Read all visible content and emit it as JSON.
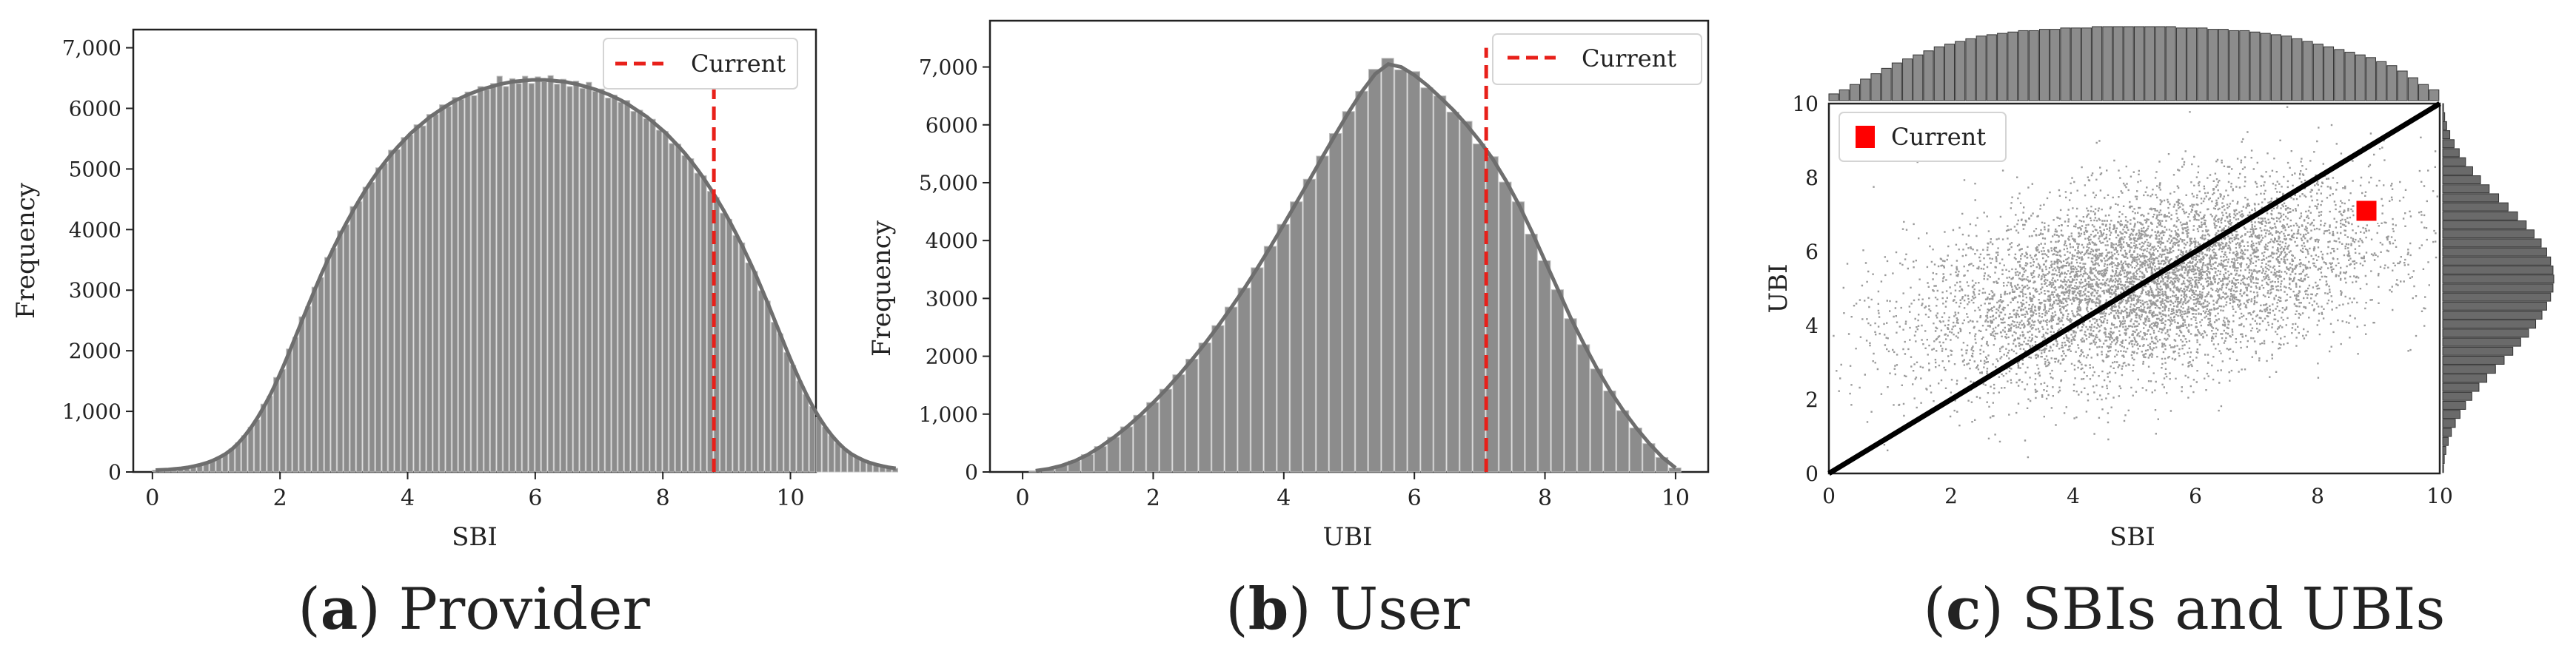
{
  "chart_data": [
    {
      "type": "bar",
      "panel": "a",
      "caption_letter": "a",
      "caption_text": "Provider",
      "xlabel": "SBI",
      "ylabel": "Frequency",
      "xlim": [
        -0.3,
        10.4
      ],
      "ylim": [
        0,
        7300
      ],
      "xticks": [
        0,
        2,
        4,
        6,
        8,
        10
      ],
      "yticks": [
        0,
        1000,
        2000,
        3000,
        4000,
        5000,
        6000,
        7000
      ],
      "ytick_labels": [
        "0",
        "1,000",
        "2000",
        "3000",
        "4000",
        "5000",
        "6000",
        "7,000"
      ],
      "bin_width": 0.1,
      "bin_start": 0.0,
      "values": [
        30,
        35,
        40,
        50,
        60,
        75,
        95,
        120,
        150,
        190,
        240,
        300,
        380,
        480,
        600,
        740,
        900,
        1080,
        1280,
        1500,
        1740,
        1990,
        2250,
        2510,
        2770,
        3020,
        3270,
        3500,
        3720,
        3930,
        4130,
        4320,
        4500,
        4670,
        4830,
        4980,
        5120,
        5250,
        5370,
        5480,
        5590,
        5680,
        5770,
        5860,
        5930,
        6000,
        6070,
        6130,
        6180,
        6230,
        6270,
        6310,
        6340,
        6370,
        6400,
        6420,
        6440,
        6450,
        6460,
        6470,
        6470,
        6470,
        6460,
        6450,
        6440,
        6420,
        6400,
        6370,
        6340,
        6310,
        6270,
        6230,
        6180,
        6130,
        6070,
        6000,
        5930,
        5860,
        5770,
        5680,
        5590,
        5480,
        5370,
        5250,
        5120,
        4980,
        4830,
        4670,
        4500,
        4320,
        4130,
        3930,
        3720,
        3500,
        3270,
        3020,
        2770,
        2510,
        2250,
        1990,
        1740,
        1500,
        1280,
        1080,
        900,
        740,
        600,
        480,
        380,
        300,
        240,
        190,
        150,
        120,
        95,
        75,
        60
      ],
      "noise": [
        0,
        0,
        0,
        0,
        0,
        0,
        0,
        0,
        0,
        0,
        0,
        0,
        0,
        0,
        0,
        0,
        -40,
        40,
        -30,
        60,
        -50,
        40,
        -30,
        50,
        -40,
        30,
        -60,
        40,
        -30,
        50,
        -50,
        60,
        -40,
        30,
        -50,
        40,
        -30,
        60,
        -50,
        40,
        -30,
        50,
        -60,
        40,
        -30,
        60,
        -40,
        50,
        -30,
        40,
        -60,
        50,
        -30,
        40,
        130,
        -60,
        50,
        -40,
        70,
        -60,
        50,
        -30,
        80,
        -50,
        40,
        -60,
        50,
        -40,
        90,
        -30,
        50,
        -60,
        40,
        -30,
        60,
        -50,
        40,
        -30,
        50,
        -40,
        30,
        -60,
        40,
        -30,
        50,
        -50,
        60,
        -40,
        30,
        -50,
        40,
        -30,
        60,
        -50,
        40,
        -30,
        50,
        -40,
        30,
        -20,
        20,
        0,
        0,
        0,
        0,
        0,
        0,
        0,
        0,
        0,
        0,
        0,
        0,
        0,
        0,
        0,
        0
      ],
      "kde_note": "",
      "current_x": 8.8,
      "legend": "Current",
      "legend_placement": "top-right"
    },
    {
      "type": "bar",
      "panel": "b",
      "caption_letter": "b",
      "caption_text": "User",
      "xlabel": "UBI",
      "ylabel": "Frequency",
      "xlim": [
        -0.5,
        10.5
      ],
      "ylim": [
        0,
        7800
      ],
      "xticks": [
        0,
        2,
        4,
        6,
        8,
        10
      ],
      "yticks": [
        0,
        1000,
        2000,
        3000,
        4000,
        5000,
        6000,
        7000
      ],
      "ytick_labels": [
        "0",
        "1,000",
        "2000",
        "3000",
        "4000",
        "5,000",
        "6000",
        "7,000"
      ],
      "bin_width": 0.2,
      "bin_start": 0.1,
      "values": [
        20,
        55,
        110,
        190,
        300,
        440,
        600,
        780,
        980,
        1200,
        1430,
        1680,
        1950,
        2230,
        2530,
        2850,
        3180,
        3530,
        3900,
        4280,
        4670,
        5060,
        5460,
        5850,
        6230,
        6580,
        6880,
        7050,
        7000,
        6860,
        6680,
        6470,
        6250,
        6000,
        5720,
        5410,
        5040,
        4620,
        4150,
        3650,
        3150,
        2650,
        2200,
        1780,
        1400,
        1060,
        760,
        490,
        250,
        70
      ],
      "noise": [
        0,
        0,
        0,
        0,
        0,
        0,
        0,
        0,
        0,
        0,
        0,
        0,
        0,
        0,
        0,
        0,
        0,
        0,
        0,
        0,
        0,
        0,
        0,
        0,
        0,
        0,
        80,
        100,
        -50,
        60,
        -40,
        30,
        -30,
        60,
        -50,
        40,
        -30,
        50,
        -40,
        0,
        0,
        0,
        0,
        0,
        0,
        0,
        0,
        0,
        0,
        0
      ],
      "current_x": 7.1,
      "legend": "Current",
      "legend_placement": "top-right"
    },
    {
      "type": "scatter",
      "panel": "c",
      "caption_letter": "c",
      "caption_text": "SBIs and UBIs",
      "xlabel": "SBI",
      "ylabel": "UBI",
      "xlim": [
        0,
        10
      ],
      "ylim": [
        0,
        10
      ],
      "xticks": [
        0,
        2,
        4,
        6,
        8,
        10
      ],
      "yticks": [
        0,
        2,
        4,
        6,
        8,
        10
      ],
      "point_center": [
        5.2,
        5.2
      ],
      "point_spread": [
        1.9,
        1.35
      ],
      "point_correlation": 0.42,
      "point_count": 14000,
      "diagonal": [
        [
          0,
          0
        ],
        [
          10,
          10
        ]
      ],
      "current_point": [
        8.8,
        7.1
      ],
      "legend": "Current",
      "legend_placement": "top-left",
      "marginal_top_values": [
        5,
        8,
        12,
        16,
        20,
        24,
        28,
        31,
        34,
        37,
        40,
        42,
        44,
        46,
        48,
        49,
        50,
        51,
        52,
        52,
        53,
        53,
        54,
        54,
        54,
        55,
        55,
        55,
        55,
        55,
        55,
        55,
        55,
        54,
        54,
        54,
        53,
        53,
        52,
        52,
        51,
        50,
        49,
        48,
        46,
        44,
        42,
        40,
        38,
        36,
        34,
        32,
        29,
        26,
        22,
        17,
        12,
        8
      ],
      "marginal_right_values": [
        2,
        4,
        8,
        14,
        22,
        32,
        44,
        58,
        74,
        92,
        112,
        134,
        156,
        178,
        198,
        218,
        236,
        252,
        264,
        274,
        280,
        282,
        280,
        274,
        264,
        250,
        232,
        212,
        190,
        166,
        142,
        118,
        96,
        76,
        58,
        42,
        29,
        18,
        10,
        5,
        2
      ]
    }
  ]
}
